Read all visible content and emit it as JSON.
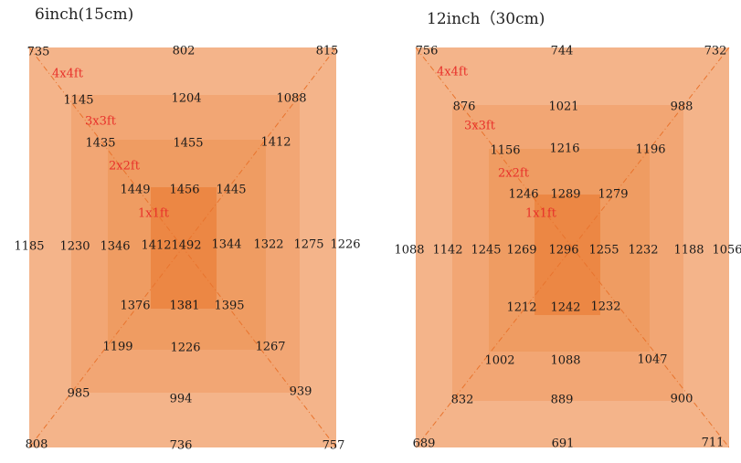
{
  "colors": {
    "zone_4x4": "#f4b48a",
    "zone_3x3": "#f2a674",
    "zone_2x2": "#ef9c62",
    "zone_1x1": "#ec8744",
    "diagonal": "#e8742e",
    "size_label": "#e8302a"
  },
  "panels": [
    {
      "title": "6inch(15cm)",
      "sizes": [
        "4x4ft",
        "3x3ft",
        "2x2ft",
        "1x1ft"
      ],
      "outer": {
        "tl": "735",
        "top": "802",
        "tr": "815",
        "left": "1185",
        "right": "1226",
        "bl": "808",
        "bottom": "736",
        "br": "757"
      },
      "ring_4x4": {
        "tl": "1145",
        "top": "1204",
        "tr": "1088",
        "left": "1230",
        "right": "1275",
        "bl": "985",
        "bottom": "994",
        "br": "939"
      },
      "ring_3x3": {
        "tl": "1435",
        "top": "1455",
        "tr": "1412",
        "left": "1346",
        "right": "1322",
        "bl": "1199",
        "bottom": "1226",
        "br": "1267"
      },
      "ring_2x2": {
        "tl": "1449",
        "top": "1456",
        "tr": "1445",
        "left": "1412",
        "right": "1344",
        "bl": "1376",
        "bottom": "1381",
        "br": "1395"
      },
      "center": "1492"
    },
    {
      "title": "12inch（30cm)",
      "sizes": [
        "4x4ft",
        "3x3ft",
        "2x2ft",
        "1x1ft"
      ],
      "outer": {
        "tl": "756",
        "top": "744",
        "tr": "732",
        "left": "1088",
        "right": "1056",
        "bl": "689",
        "bottom": "691",
        "br": "711"
      },
      "ring_4x4": {
        "tl": "876",
        "top": "1021",
        "tr": "988",
        "left": "1142",
        "right": "1188",
        "bl": "832",
        "bottom": "889",
        "br": "900"
      },
      "ring_3x3": {
        "tl": "1156",
        "top": "1216",
        "tr": "1196",
        "left": "1245",
        "right": "1232",
        "bl": "1002",
        "bottom": "1088",
        "br": "1047"
      },
      "ring_2x2": {
        "tl": "1246",
        "top": "1289",
        "tr": "1279",
        "left": "1269",
        "right": "1255",
        "bl": "1212",
        "bottom": "1242",
        "br": "1232"
      },
      "center": "1296"
    }
  ]
}
